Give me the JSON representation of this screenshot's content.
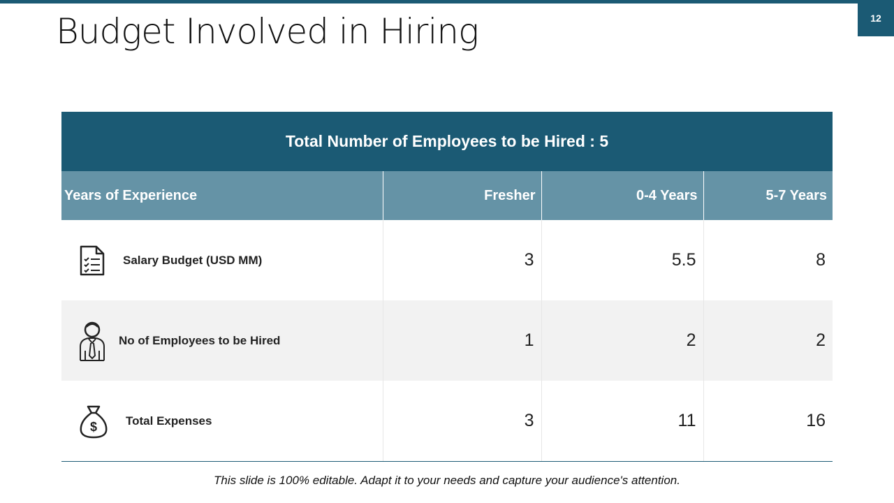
{
  "page_number": "12",
  "title": "Budget Involved in Hiring",
  "table": {
    "banner": "Total Number of Employees to be Hired :  5",
    "header": [
      "Years of Experience",
      "Fresher",
      "0-4 Years",
      "5-7 Years"
    ],
    "rows": [
      [
        "Salary Budget (USD MM)",
        3,
        5.5,
        8
      ],
      [
        "No of Employees to be Hired",
        1,
        2,
        2
      ],
      [
        "Total Expenses",
        3,
        11,
        16
      ]
    ]
  },
  "footer": "This slide is 100% editable. Adapt it to your needs and capture your audience's attention."
}
